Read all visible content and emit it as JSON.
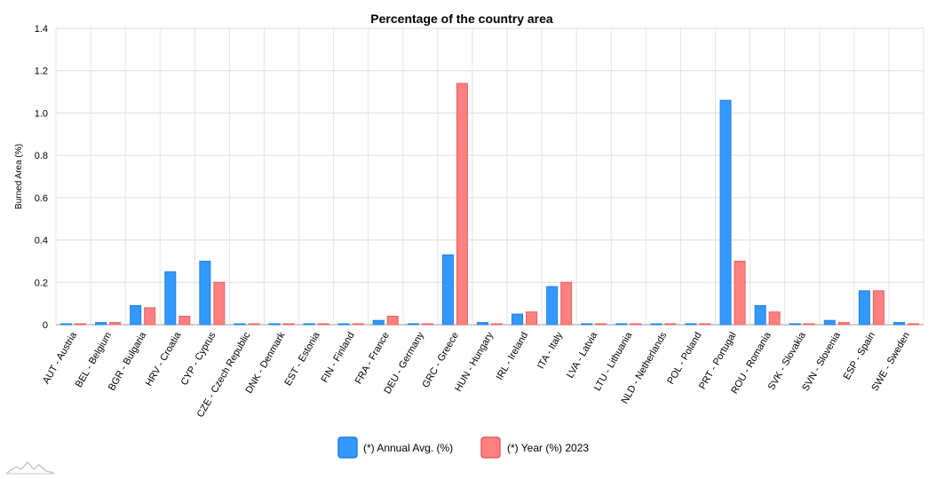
{
  "chart_data": {
    "type": "bar",
    "title": "Percentage of the country area",
    "xlabel": "",
    "ylabel": "Burned Area (%)",
    "ylim": [
      0,
      1.4
    ],
    "yticks": [
      "0",
      "0.2",
      "0.4",
      "0.6",
      "0.8",
      "1.0",
      "1.2",
      "1.4"
    ],
    "grid": true,
    "legend_position": "bottom-center",
    "categories": [
      "AUT - Austria",
      "BEL - Belgium",
      "BGR - Bulgaria",
      "HRV - Croatia",
      "CYP - Cyprus",
      "CZE - Czech Republic",
      "DNK - Denmark",
      "EST - Estonia",
      "FIN - Finland",
      "FRA - France",
      "DEU - Germany",
      "GRC - Greece",
      "HUN - Hungary",
      "IRL - Ireland",
      "ITA - Italy",
      "LVA - Latvia",
      "LTU - Lithuania",
      "NLD - Netherlands",
      "POL - Poland",
      "PRT - Portugal",
      "ROU - Romania",
      "SVK - Slovakia",
      "SVN - Slovenia",
      "ESP - Spain",
      "SWE - Sweden"
    ],
    "series": [
      {
        "name": "(*) Annual Avg. (%)",
        "color": "#3399ff",
        "stroke": "#1f7fe0",
        "values": [
          0.002,
          0.01,
          0.09,
          0.25,
          0.3,
          0.001,
          0.001,
          0.002,
          0.002,
          0.02,
          0.002,
          0.33,
          0.01,
          0.05,
          0.18,
          0.002,
          0.002,
          0.001,
          0.002,
          1.06,
          0.09,
          0.002,
          0.02,
          0.16,
          0.01
        ]
      },
      {
        "name": "(*) Year (%) 2023",
        "color": "#ff8080",
        "stroke": "#e86060",
        "values": [
          0.001,
          0.01,
          0.08,
          0.04,
          0.2,
          0.0,
          0.001,
          0.001,
          0.001,
          0.04,
          0.001,
          1.14,
          0.001,
          0.06,
          0.2,
          0.001,
          0.001,
          0.001,
          0.001,
          0.3,
          0.06,
          0.001,
          0.01,
          0.16,
          0.001
        ]
      }
    ]
  }
}
